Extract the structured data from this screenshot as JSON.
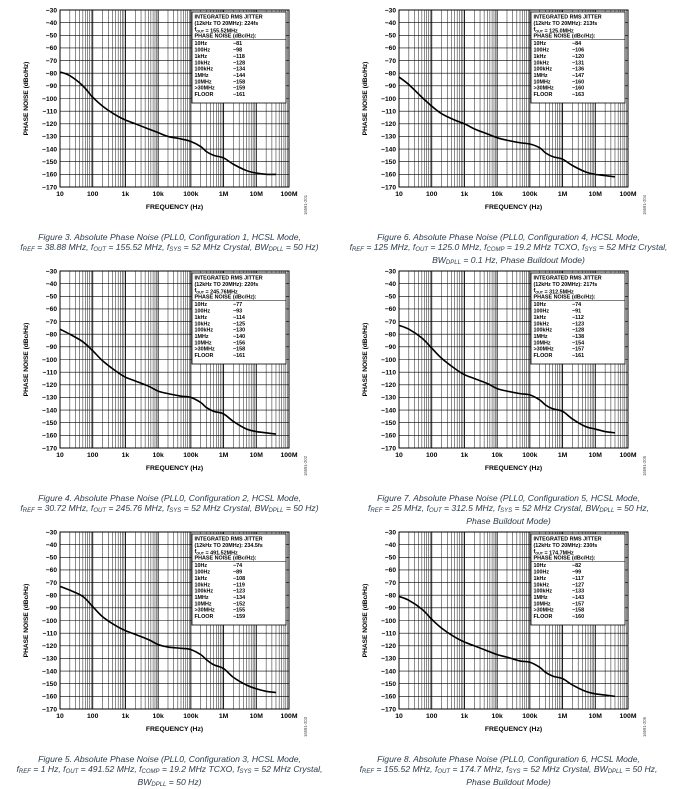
{
  "common": {
    "ylabel": "PHASE NOISE (dBc/Hz)",
    "xlabel": "FREQUENCY (Hz)",
    "box_title_1": "INTEGRATED RMS JITTER",
    "box_title_2": "(12kHz TO 20MHz):",
    "box_pn_header": "PHASE NOISE (dBc/Hz):",
    "box_freqs": [
      "10Hz",
      "100Hz",
      "1kHz",
      "10kHz",
      "100kHz",
      "1MHz",
      "10MHz",
      ">30MHz",
      "FLOOR"
    ]
  },
  "chart_data": [
    {
      "type": "line",
      "id": "fig3",
      "jitter": "224fs",
      "fout_box": "155.52MHz",
      "pn_values": [
        "−81",
        "−98",
        "−118",
        "−128",
        "−134",
        "−144",
        "−158",
        "−159",
        "−161"
      ],
      "side_id": "16591-201",
      "caption_lines": [
        "Figure 3. Absolute Phase Noise (PLL0, Configuration 1, HCSL Mode,",
        "f_REF = 38.88 MHz, f_OUT = 155.52 MHz, f_SYS = 52 MHz Crystal, BW_DPLL = 50 Hz)"
      ],
      "xlim": [
        10,
        100000000
      ],
      "ylim": [
        -170,
        -30
      ],
      "xscale": "log",
      "x_ticks": [
        "10",
        "100",
        "1k",
        "10k",
        "100k",
        "1M",
        "10M",
        "100M"
      ],
      "y_ticks": [
        "−30",
        "−40",
        "−50",
        "−60",
        "−70",
        "−80",
        "−90",
        "−100",
        "−110",
        "−120",
        "−130",
        "−140",
        "−150",
        "−160",
        "−170"
      ],
      "series": [
        {
          "x": [
            10,
            20,
            50,
            100,
            200,
            500,
            1000,
            2000,
            5000,
            10000,
            20000,
            50000,
            100000,
            200000,
            300000,
            500000,
            1000000,
            2000000,
            5000000,
            10000000,
            20000000,
            40000000
          ],
          "y": [
            -79,
            -82,
            -90,
            -99,
            -106,
            -113,
            -117,
            -120,
            -124,
            -127,
            -130,
            -132,
            -134,
            -138,
            -142,
            -145,
            -147,
            -152,
            -157,
            -159,
            -160,
            -160
          ]
        }
      ]
    },
    {
      "type": "line",
      "id": "fig6",
      "jitter": "213fs",
      "fout_box": "125.0MHz",
      "pn_values": [
        "−84",
        "−106",
        "−120",
        "−131",
        "−136",
        "−147",
        "−160",
        "−160",
        "−163"
      ],
      "side_id": "16591-204",
      "caption_lines": [
        "Figure 6. Absolute Phase Noise (PLL0, Configuration 4, HCSL Mode,",
        "f_REF = 125 MHz, f_OUT = 125.0 MHz, f_COMP = 19.2 MHz TCXO, f_SYS = 52 MHz Crystal,",
        "BW_DPLL = 0.1 Hz, Phase Buildout Mode)"
      ],
      "xlim": [
        10,
        100000000
      ],
      "ylim": [
        -170,
        -30
      ],
      "xscale": "log",
      "x_ticks": [
        "10",
        "100",
        "1k",
        "10k",
        "100k",
        "1M",
        "10M",
        "100M"
      ],
      "y_ticks": [
        "−30",
        "−40",
        "−50",
        "−60",
        "−70",
        "−80",
        "−90",
        "−100",
        "−110",
        "−120",
        "−130",
        "−140",
        "−150",
        "−160",
        "−170"
      ],
      "series": [
        {
          "x": [
            10,
            20,
            50,
            100,
            200,
            500,
            1000,
            2000,
            5000,
            10000,
            20000,
            50000,
            100000,
            200000,
            300000,
            500000,
            1000000,
            2000000,
            5000000,
            10000000,
            20000000,
            40000000
          ],
          "y": [
            -83,
            -89,
            -99,
            -106,
            -112,
            -117,
            -120,
            -124,
            -128,
            -131,
            -133,
            -135,
            -136,
            -139,
            -143,
            -146,
            -148,
            -153,
            -158,
            -160,
            -161,
            -162
          ]
        }
      ]
    },
    {
      "type": "line",
      "id": "fig4",
      "jitter": "220fs",
      "fout_box": "245.76MHz",
      "pn_values": [
        "−77",
        "−93",
        "−114",
        "−125",
        "−130",
        "−140",
        "−156",
        "−158",
        "−161"
      ],
      "side_id": "16591-202",
      "caption_lines": [
        "Figure 4. Absolute Phase Noise (PLL0, Configuration 2, HCSL Mode,",
        "f_REF = 30.72 MHz, f_OUT = 245.76 MHz, f_SYS = 52 MHz Crystal, BW_DPLL = 50 Hz)"
      ],
      "xlim": [
        10,
        100000000
      ],
      "ylim": [
        -170,
        -30
      ],
      "xscale": "log",
      "x_ticks": [
        "10",
        "100",
        "1k",
        "10k",
        "100k",
        "1M",
        "10M",
        "100M"
      ],
      "y_ticks": [
        "−30",
        "−40",
        "−50",
        "−60",
        "−70",
        "−80",
        "−90",
        "−100",
        "−110",
        "−120",
        "−130",
        "−140",
        "−150",
        "−160",
        "−170"
      ],
      "series": [
        {
          "x": [
            10,
            20,
            50,
            100,
            200,
            500,
            1000,
            2000,
            5000,
            10000,
            20000,
            50000,
            100000,
            200000,
            300000,
            500000,
            1000000,
            2000000,
            5000000,
            10000000,
            20000000,
            40000000
          ],
          "y": [
            -76,
            -80,
            -86,
            -93,
            -101,
            -109,
            -114,
            -117,
            -121,
            -125,
            -127,
            -129,
            -130,
            -134,
            -138,
            -141,
            -143,
            -149,
            -155,
            -157,
            -158,
            -159
          ]
        }
      ]
    },
    {
      "type": "line",
      "id": "fig7",
      "jitter": "217fs",
      "fout_box": "312.5MHz",
      "pn_values": [
        "−74",
        "−91",
        "−112",
        "−123",
        "−128",
        "−138",
        "−154",
        "−157",
        "−161"
      ],
      "side_id": "16591-205",
      "caption_lines": [
        "Figure 7. Absolute Phase Noise (PLL0, Configuration 5, HCSL Mode,",
        "f_REF = 25 MHz, f_OUT = 312.5 MHz, f_SYS = 52 MHz Crystal, BW_DPLL = 50 Hz,",
        "Phase Buildout Mode)"
      ],
      "xlim": [
        10,
        100000000
      ],
      "ylim": [
        -170,
        -30
      ],
      "xscale": "log",
      "x_ticks": [
        "10",
        "100",
        "1k",
        "10k",
        "100k",
        "1M",
        "10M",
        "100M"
      ],
      "y_ticks": [
        "−30",
        "−40",
        "−50",
        "−60",
        "−70",
        "−80",
        "−90",
        "−100",
        "−110",
        "−120",
        "−130",
        "−140",
        "−150",
        "−160",
        "−170"
      ],
      "series": [
        {
          "x": [
            10,
            20,
            50,
            100,
            200,
            500,
            1000,
            2000,
            5000,
            10000,
            20000,
            50000,
            100000,
            200000,
            300000,
            500000,
            1000000,
            2000000,
            5000000,
            10000000,
            20000000,
            40000000
          ],
          "y": [
            -73,
            -76,
            -83,
            -91,
            -99,
            -107,
            -112,
            -115,
            -119,
            -123,
            -125,
            -127,
            -128,
            -132,
            -136,
            -139,
            -141,
            -147,
            -153,
            -155,
            -157,
            -158
          ]
        }
      ]
    },
    {
      "type": "line",
      "id": "fig5",
      "jitter": "234.5fs",
      "fout_box": "491.52MHz",
      "pn_values": [
        "−74",
        "−89",
        "−108",
        "−119",
        "−123",
        "−134",
        "−152",
        "−155",
        "−159"
      ],
      "side_id": "16591-203",
      "caption_lines": [
        "Figure 5. Absolute Phase Noise (PLL0, Configuration 3, HCSL Mode,",
        "f_REF = 1 Hz, f_OUT = 491.52 MHz, f_COMP = 19.2 MHz TCXO, f_SYS = 52 MHz Crystal,",
        "BW_DPLL = 50 Hz)"
      ],
      "xlim": [
        10,
        100000000
      ],
      "ylim": [
        -170,
        -30
      ],
      "xscale": "log",
      "x_ticks": [
        "10",
        "100",
        "1k",
        "10k",
        "100k",
        "1M",
        "10M",
        "100M"
      ],
      "y_ticks": [
        "−30",
        "−40",
        "−50",
        "−60",
        "−70",
        "−80",
        "−90",
        "−100",
        "−110",
        "−120",
        "−130",
        "−140",
        "−150",
        "−160",
        "−170"
      ],
      "series": [
        {
          "x": [
            10,
            20,
            50,
            100,
            200,
            500,
            1000,
            2000,
            5000,
            10000,
            20000,
            50000,
            100000,
            200000,
            300000,
            500000,
            1000000,
            2000000,
            5000000,
            10000000,
            20000000,
            40000000
          ],
          "y": [
            -73,
            -76,
            -81,
            -89,
            -97,
            -104,
            -108,
            -111,
            -115,
            -119,
            -121,
            -122,
            -123,
            -127,
            -131,
            -135,
            -138,
            -145,
            -151,
            -154,
            -156,
            -157
          ]
        }
      ]
    },
    {
      "type": "line",
      "id": "fig8",
      "jitter": "230fs",
      "fout_box": "174.7MHz",
      "pn_values": [
        "−82",
        "−99",
        "−117",
        "−127",
        "−133",
        "−143",
        "−157",
        "−158",
        "−160"
      ],
      "side_id": "16591-206",
      "caption_lines": [
        "Figure 8. Absolute Phase Noise (PLL0, Configuration 6, HCSL Mode,",
        "f_REF = 155.52 MHz, f_OUT = 174.7 MHz, f_SYS = 52 MHz Crystal, BW_DPLL = 50 Hz,",
        "Phase Buildout Mode)"
      ],
      "xlim": [
        10,
        100000000
      ],
      "ylim": [
        -170,
        -30
      ],
      "xscale": "log",
      "x_ticks": [
        "10",
        "100",
        "1k",
        "10k",
        "100k",
        "1M",
        "10M",
        "100M"
      ],
      "y_ticks": [
        "−30",
        "−40",
        "−50",
        "−60",
        "−70",
        "−80",
        "−90",
        "−100",
        "−110",
        "−120",
        "−130",
        "−140",
        "−150",
        "−160",
        "−170"
      ],
      "series": [
        {
          "x": [
            10,
            20,
            50,
            100,
            200,
            500,
            1000,
            2000,
            5000,
            10000,
            20000,
            50000,
            100000,
            200000,
            300000,
            500000,
            1000000,
            2000000,
            5000000,
            10000000,
            20000000,
            40000000
          ],
          "y": [
            -81,
            -84,
            -91,
            -99,
            -106,
            -113,
            -117,
            -120,
            -124,
            -127,
            -129,
            -132,
            -133,
            -137,
            -141,
            -144,
            -146,
            -151,
            -156,
            -158,
            -159,
            -160
          ]
        }
      ]
    }
  ]
}
